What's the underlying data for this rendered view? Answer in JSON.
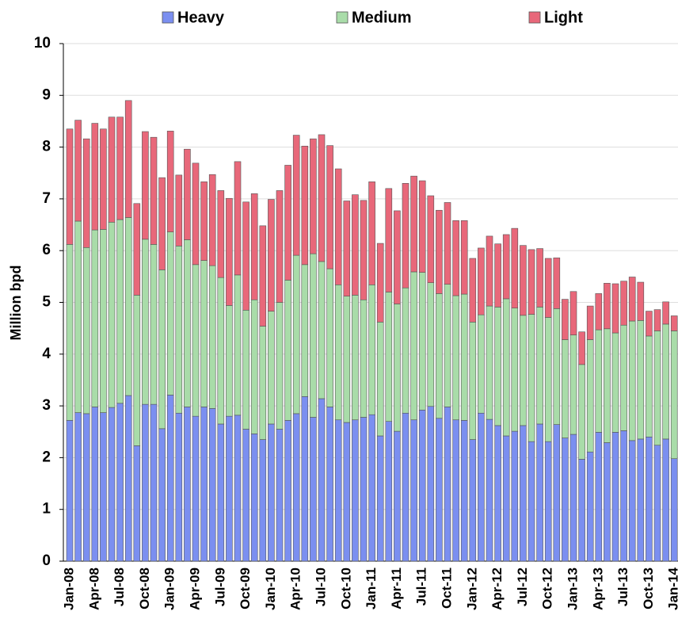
{
  "chart_data": {
    "type": "stacked_bar",
    "y_label": "Million bpd",
    "categories": [
      "Jan-08",
      null,
      null,
      "Apr-08",
      null,
      null,
      "Jul-08",
      null,
      null,
      "Oct-08",
      null,
      null,
      "Jan-09",
      null,
      null,
      "Apr-09",
      null,
      null,
      "Jul-09",
      null,
      null,
      "Oct-09",
      null,
      null,
      "Jan-10",
      null,
      null,
      "Apr-10",
      null,
      null,
      "Jul-10",
      null,
      null,
      "Oct-10",
      null,
      null,
      "Jan-11",
      null,
      null,
      "Apr-11",
      null,
      null,
      "Jul-11",
      null,
      null,
      "Oct-11",
      null,
      null,
      "Jan-12",
      null,
      null,
      "Apr-12",
      null,
      null,
      "Jul-12",
      null,
      null,
      "Oct-12",
      null,
      null,
      "Jan-13",
      null,
      null,
      "Apr-13",
      null,
      null,
      "Jul-13",
      null,
      null,
      "Oct-13",
      null,
      null,
      "Jan-14"
    ],
    "series": [
      {
        "name": "Heavy",
        "color": "#7b8ff0",
        "values": [
          2.72,
          2.87,
          2.85,
          2.98,
          2.87,
          2.97,
          3.05,
          3.2,
          2.23,
          3.03,
          3.03,
          2.56,
          3.21,
          2.86,
          2.98,
          2.8,
          2.98,
          2.95,
          2.65,
          2.8,
          2.82,
          2.55,
          2.46,
          2.35,
          2.65,
          2.55,
          2.72,
          2.85,
          3.18,
          2.78,
          3.14,
          2.98,
          2.73,
          2.68,
          2.73,
          2.78,
          2.83,
          2.42,
          2.7,
          2.51,
          2.86,
          2.73,
          2.92,
          2.99,
          2.76,
          2.98,
          2.73,
          2.72,
          2.35,
          2.86,
          2.74,
          2.62,
          2.42,
          2.51,
          2.62,
          2.31,
          2.65,
          2.31,
          2.64,
          2.38,
          2.45,
          1.97,
          2.11,
          2.49,
          2.29,
          2.49,
          2.52,
          2.33,
          2.36,
          2.4,
          2.24,
          2.36,
          1.98
        ]
      },
      {
        "name": "Medium",
        "color": "#a9dca9",
        "values": [
          3.4,
          3.7,
          3.21,
          3.42,
          3.54,
          3.58,
          3.55,
          3.44,
          2.91,
          3.19,
          3.09,
          3.07,
          3.15,
          3.23,
          3.23,
          2.93,
          2.83,
          2.76,
          2.83,
          2.14,
          2.71,
          2.3,
          2.59,
          2.19,
          2.18,
          2.45,
          2.71,
          3.06,
          2.55,
          3.16,
          2.65,
          2.67,
          2.61,
          2.44,
          2.41,
          2.27,
          2.51,
          2.2,
          2.5,
          2.46,
          2.42,
          2.86,
          2.66,
          2.39,
          2.41,
          2.37,
          2.4,
          2.44,
          2.27,
          1.9,
          2.19,
          2.29,
          2.65,
          2.38,
          2.13,
          2.46,
          2.26,
          2.4,
          2.24,
          1.9,
          1.92,
          1.83,
          2.17,
          1.98,
          2.2,
          1.92,
          2.04,
          2.31,
          2.29,
          1.95,
          2.21,
          2.22,
          2.47
        ]
      },
      {
        "name": "Light",
        "color": "#e8687a",
        "values": [
          2.23,
          1.95,
          2.1,
          2.06,
          1.94,
          2.03,
          1.98,
          2.26,
          1.77,
          2.08,
          2.07,
          1.78,
          1.95,
          1.37,
          1.75,
          1.96,
          1.52,
          1.76,
          1.68,
          2.07,
          2.19,
          2.09,
          2.05,
          1.94,
          2.16,
          2.16,
          2.22,
          2.32,
          2.29,
          2.22,
          2.45,
          2.38,
          2.24,
          1.84,
          1.94,
          1.92,
          1.99,
          1.52,
          2.0,
          1.8,
          2.02,
          1.85,
          1.77,
          1.68,
          1.61,
          1.58,
          1.45,
          1.42,
          1.23,
          1.29,
          1.35,
          1.22,
          1.24,
          1.54,
          1.35,
          1.25,
          1.13,
          1.14,
          0.98,
          0.78,
          0.84,
          0.63,
          0.65,
          0.7,
          0.88,
          0.95,
          0.85,
          0.85,
          0.74,
          0.48,
          0.41,
          0.43,
          0.29
        ]
      }
    ],
    "ylim": [
      0,
      10
    ],
    "yticks": [
      0,
      1,
      2,
      3,
      4,
      5,
      6,
      7,
      8,
      9,
      10
    ],
    "grid": true,
    "legend": "top"
  }
}
